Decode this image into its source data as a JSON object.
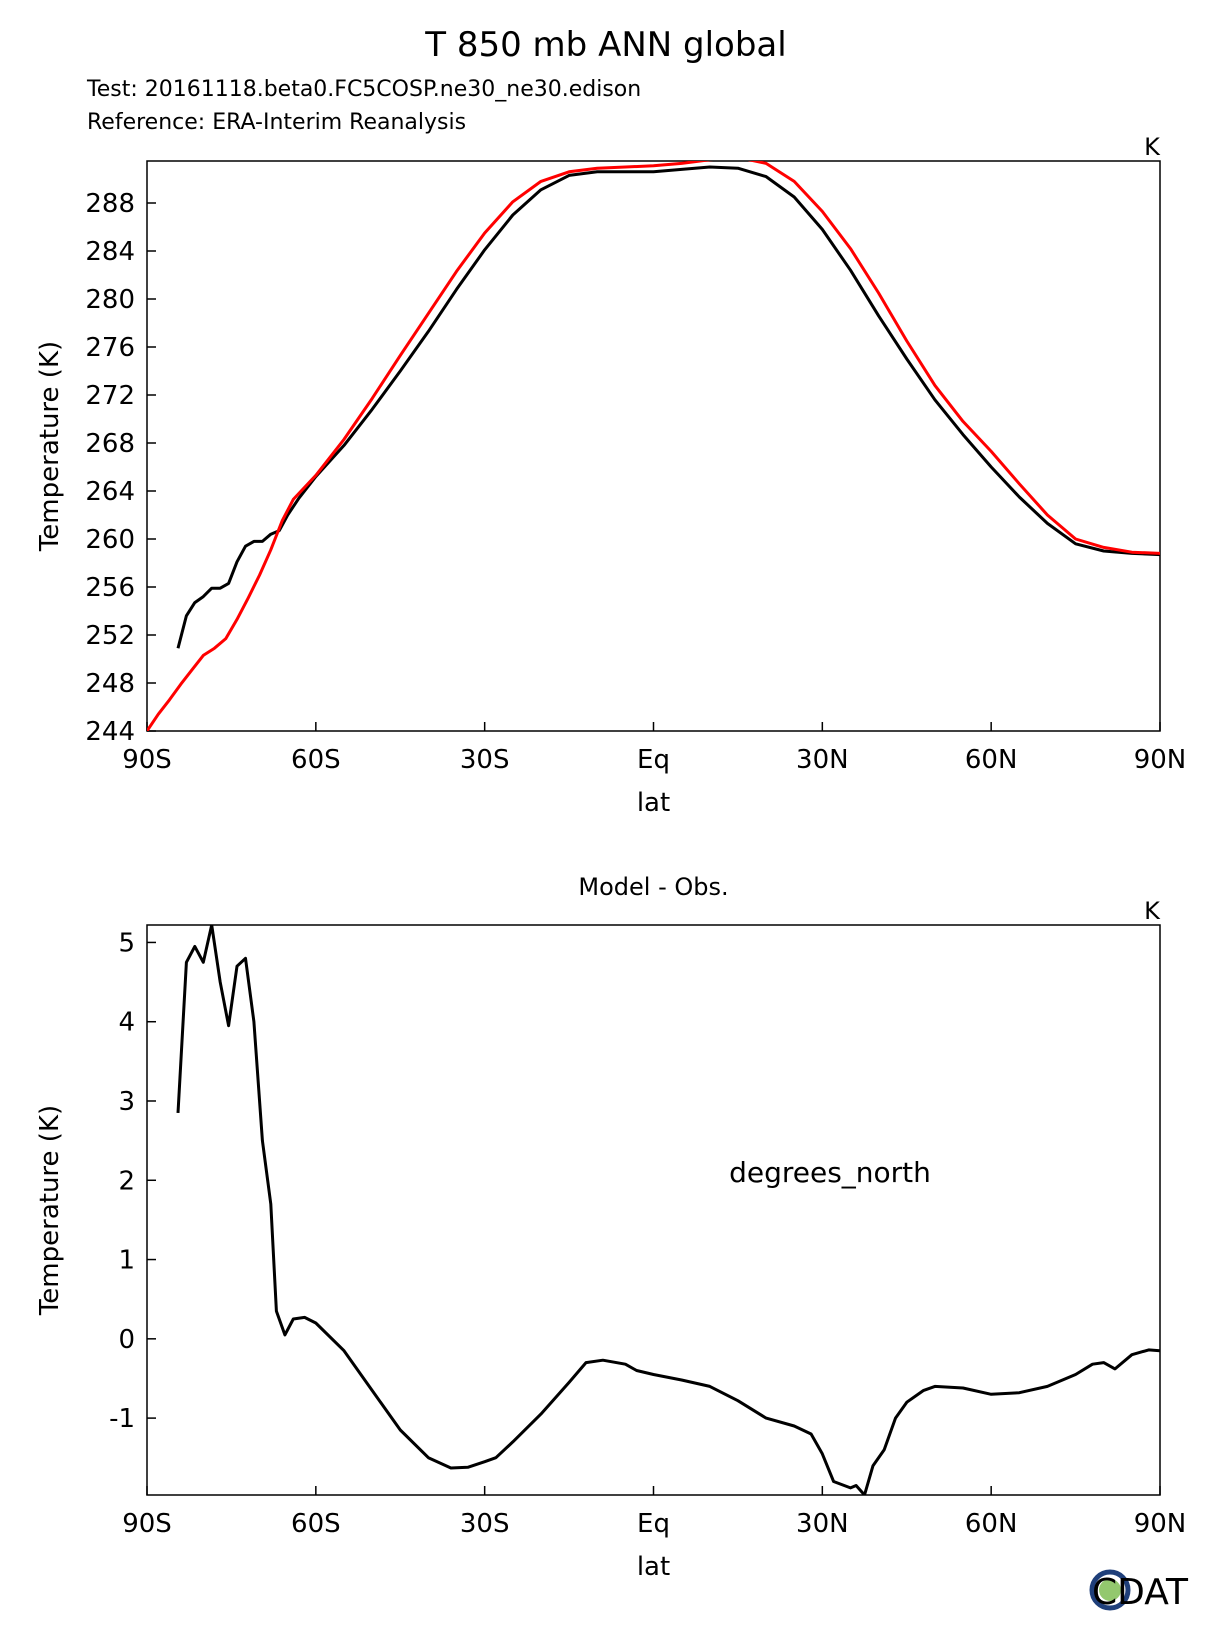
{
  "header": {
    "title": "T 850 mb ANN global",
    "test_label": "Test: 20161118.beta0.FC5COSP.ne30_ne30.edison",
    "reference_label": "Reference: ERA-Interim Reanalysis",
    "reference_color": "#ff0000"
  },
  "logo": {
    "text": "CDAT",
    "color": "#1f3f7a"
  },
  "chart_data": [
    {
      "type": "line",
      "title": "",
      "units": "K",
      "xlabel": "lat",
      "ylabel": "Temperature (K)",
      "xlim": [
        -90,
        90
      ],
      "ylim": [
        244,
        291.5
      ],
      "xticks": [
        -90,
        -60,
        -30,
        0,
        30,
        60,
        90
      ],
      "xtick_labels": [
        "90S",
        "60S",
        "30S",
        "Eq",
        "30N",
        "60N",
        "90N"
      ],
      "yticks": [
        244,
        248,
        252,
        256,
        260,
        264,
        268,
        272,
        276,
        280,
        284,
        288
      ],
      "ytick_labels": [
        "244",
        "248",
        "252",
        "256",
        "260",
        "264",
        "268",
        "272",
        "276",
        "280",
        "284",
        "288"
      ],
      "series": [
        {
          "name": "Test",
          "color": "#000000",
          "points": [
            [
              -84.5,
              250.9
            ],
            [
              -83,
              253.6
            ],
            [
              -81.5,
              254.7
            ],
            [
              -80,
              255.2
            ],
            [
              -78.5,
              255.9
            ],
            [
              -77,
              255.9
            ],
            [
              -75.5,
              256.3
            ],
            [
              -74,
              258.1
            ],
            [
              -72.5,
              259.4
            ],
            [
              -71,
              259.8
            ],
            [
              -69.5,
              259.8
            ],
            [
              -68,
              260.4
            ],
            [
              -66.5,
              260.7
            ],
            [
              -65,
              262.0
            ],
            [
              -63,
              263.4
            ],
            [
              -60,
              265.2
            ],
            [
              -55,
              267.8
            ],
            [
              -50,
              270.8
            ],
            [
              -45,
              274.0
            ],
            [
              -40,
              277.3
            ],
            [
              -35,
              280.8
            ],
            [
              -30,
              284.1
            ],
            [
              -25,
              287.0
            ],
            [
              -20,
              289.1
            ],
            [
              -15,
              290.3
            ],
            [
              -10,
              290.6
            ],
            [
              -5,
              290.6
            ],
            [
              0,
              290.6
            ],
            [
              5,
              290.8
            ],
            [
              10,
              291.0
            ],
            [
              15,
              290.9
            ],
            [
              20,
              290.2
            ],
            [
              25,
              288.5
            ],
            [
              30,
              285.8
            ],
            [
              35,
              282.4
            ],
            [
              40,
              278.6
            ],
            [
              45,
              275.0
            ],
            [
              50,
              271.6
            ],
            [
              55,
              268.7
            ],
            [
              60,
              266.0
            ],
            [
              65,
              263.5
            ],
            [
              70,
              261.3
            ],
            [
              75,
              259.6
            ],
            [
              80,
              259.0
            ],
            [
              85,
              258.8
            ],
            [
              90,
              258.7
            ]
          ]
        },
        {
          "name": "Reference",
          "color": "#ff0000",
          "points": [
            [
              -90,
              244
            ],
            [
              -88,
              245.4
            ],
            [
              -86,
              246.6
            ],
            [
              -84,
              247.9
            ],
            [
              -82,
              249.1
            ],
            [
              -80,
              250.3
            ],
            [
              -78,
              250.9
            ],
            [
              -76,
              251.7
            ],
            [
              -74,
              253.3
            ],
            [
              -72,
              255.1
            ],
            [
              -70,
              257.0
            ],
            [
              -68,
              259.1
            ],
            [
              -66,
              261.5
            ],
            [
              -64,
              263.3
            ],
            [
              -60,
              265.3
            ],
            [
              -55,
              268.3
            ],
            [
              -50,
              271.7
            ],
            [
              -45,
              275.3
            ],
            [
              -40,
              278.8
            ],
            [
              -35,
              282.3
            ],
            [
              -30,
              285.5
            ],
            [
              -25,
              288.1
            ],
            [
              -20,
              289.8
            ],
            [
              -15,
              290.6
            ],
            [
              -10,
              290.9
            ],
            [
              -5,
              291.0
            ],
            [
              0,
              291.1
            ],
            [
              5,
              291.3
            ],
            [
              10,
              291.6
            ],
            [
              15,
              291.8
            ],
            [
              20,
              291.3
            ],
            [
              25,
              289.8
            ],
            [
              30,
              287.3
            ],
            [
              35,
              284.2
            ],
            [
              40,
              280.5
            ],
            [
              45,
              276.5
            ],
            [
              50,
              272.8
            ],
            [
              55,
              269.8
            ],
            [
              60,
              267.3
            ],
            [
              65,
              264.6
            ],
            [
              70,
              262.0
            ],
            [
              75,
              260.0
            ],
            [
              80,
              259.3
            ],
            [
              85,
              258.9
            ],
            [
              90,
              258.8
            ]
          ]
        }
      ]
    },
    {
      "type": "line",
      "title": "Model - Obs.",
      "units": "K",
      "annotation": "degrees_north",
      "xlabel": "lat",
      "ylabel": "Temperature (K)",
      "xlim": [
        -90,
        90
      ],
      "ylim": [
        -1.97,
        5.22
      ],
      "xticks": [
        -90,
        -60,
        -30,
        0,
        30,
        60,
        90
      ],
      "xtick_labels": [
        "90S",
        "60S",
        "30S",
        "Eq",
        "30N",
        "60N",
        "90N"
      ],
      "yticks": [
        -1,
        0,
        1,
        2,
        3,
        4,
        5
      ],
      "ytick_labels": [
        "-1",
        "0",
        "1",
        "2",
        "3",
        "4",
        "5"
      ],
      "series": [
        {
          "name": "Model - Obs.",
          "color": "#000000",
          "points": [
            [
              -84.5,
              2.85
            ],
            [
              -83,
              4.75
            ],
            [
              -81.5,
              4.95
            ],
            [
              -80,
              4.75
            ],
            [
              -78.5,
              5.22
            ],
            [
              -77,
              4.5
            ],
            [
              -75.5,
              3.95
            ],
            [
              -74,
              4.7
            ],
            [
              -72.5,
              4.8
            ],
            [
              -71,
              4.0
            ],
            [
              -69.5,
              2.5
            ],
            [
              -68,
              1.7
            ],
            [
              -67,
              0.35
            ],
            [
              -65.5,
              0.05
            ],
            [
              -64,
              0.25
            ],
            [
              -62,
              0.27
            ],
            [
              -60,
              0.2
            ],
            [
              -55,
              -0.15
            ],
            [
              -50,
              -0.65
            ],
            [
              -45,
              -1.15
            ],
            [
              -40,
              -1.5
            ],
            [
              -36,
              -1.63
            ],
            [
              -33,
              -1.62
            ],
            [
              -30,
              -1.55
            ],
            [
              -28,
              -1.5
            ],
            [
              -25,
              -1.3
            ],
            [
              -20,
              -0.95
            ],
            [
              -15,
              -0.55
            ],
            [
              -12,
              -0.3
            ],
            [
              -9,
              -0.27
            ],
            [
              -5,
              -0.32
            ],
            [
              -3,
              -0.4
            ],
            [
              0,
              -0.45
            ],
            [
              5,
              -0.52
            ],
            [
              10,
              -0.6
            ],
            [
              15,
              -0.78
            ],
            [
              20,
              -1.0
            ],
            [
              25,
              -1.1
            ],
            [
              28,
              -1.2
            ],
            [
              30,
              -1.45
            ],
            [
              32,
              -1.8
            ],
            [
              35,
              -1.88
            ],
            [
              36,
              -1.85
            ],
            [
              37.5,
              -1.97
            ],
            [
              39,
              -1.6
            ],
            [
              41,
              -1.4
            ],
            [
              43,
              -1.0
            ],
            [
              45,
              -0.8
            ],
            [
              48,
              -0.65
            ],
            [
              50,
              -0.6
            ],
            [
              55,
              -0.62
            ],
            [
              60,
              -0.7
            ],
            [
              65,
              -0.68
            ],
            [
              70,
              -0.6
            ],
            [
              75,
              -0.45
            ],
            [
              78,
              -0.32
            ],
            [
              80,
              -0.3
            ],
            [
              82,
              -0.38
            ],
            [
              85,
              -0.2
            ],
            [
              88,
              -0.14
            ],
            [
              90,
              -0.15
            ]
          ]
        }
      ]
    }
  ]
}
